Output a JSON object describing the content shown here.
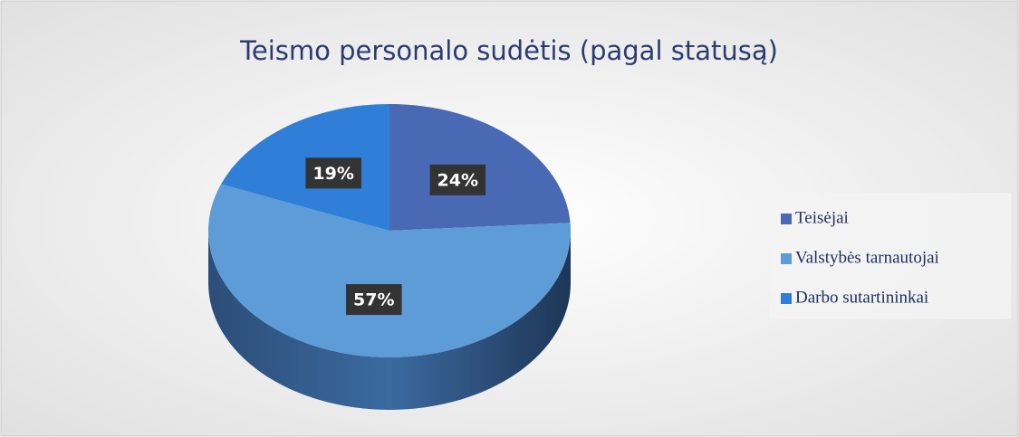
{
  "chart_data": {
    "type": "pie",
    "title": "Teismo personalo sudėtis (pagal statusą)",
    "categories": [
      "Teisėjai",
      "Valstybės tarnautojai",
      "Darbo sutartininkai"
    ],
    "values": [
      24,
      57,
      19
    ],
    "value_labels": [
      "24%",
      "57%",
      "19%"
    ],
    "colors": [
      "#4a69b4",
      "#5d9cd6",
      "#2f7fd8"
    ],
    "legend": "right"
  }
}
